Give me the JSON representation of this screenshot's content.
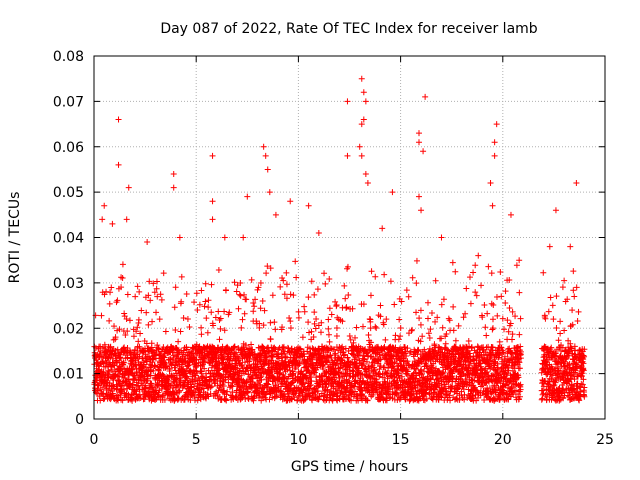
{
  "chart_data": {
    "type": "scatter",
    "title": "Day 087 of 2022, Rate Of TEC Index for receiver lamb",
    "xlabel": "GPS time / hours",
    "ylabel": "ROTI / TECUs",
    "xlim": [
      0,
      25
    ],
    "ylim": [
      0,
      0.08
    ],
    "x_ticks": [
      0,
      5,
      10,
      15,
      20,
      25
    ],
    "x_tick_labels": [
      "0",
      "5",
      "10",
      "15",
      "20",
      "25"
    ],
    "y_ticks": [
      0,
      0.01,
      0.02,
      0.03,
      0.04,
      0.05,
      0.06,
      0.07,
      0.08
    ],
    "y_tick_labels": [
      "0",
      "0.01",
      "0.02",
      "0.03",
      "0.04",
      "0.05",
      "0.06",
      "0.07",
      "0.08"
    ],
    "grid": true,
    "marker": "+",
    "marker_color": "#ff0000",
    "data_gaps_hours": [
      [
        20.9,
        21.9
      ]
    ],
    "series": [
      {
        "points": [
          {
            "x": 1.2,
            "y": 0.066
          },
          {
            "x": 1.2,
            "y": 0.056
          },
          {
            "x": 1.7,
            "y": 0.051
          },
          {
            "x": 0.5,
            "y": 0.047
          },
          {
            "x": 0.4,
            "y": 0.044
          },
          {
            "x": 1.6,
            "y": 0.044
          },
          {
            "x": 3.9,
            "y": 0.054
          },
          {
            "x": 3.9,
            "y": 0.051
          },
          {
            "x": 5.8,
            "y": 0.058
          },
          {
            "x": 5.8,
            "y": 0.048
          },
          {
            "x": 5.8,
            "y": 0.044
          },
          {
            "x": 7.5,
            "y": 0.049
          },
          {
            "x": 8.3,
            "y": 0.06
          },
          {
            "x": 8.4,
            "y": 0.058
          },
          {
            "x": 8.5,
            "y": 0.055
          },
          {
            "x": 8.6,
            "y": 0.05
          },
          {
            "x": 9.6,
            "y": 0.048
          },
          {
            "x": 10.5,
            "y": 0.047
          },
          {
            "x": 12.4,
            "y": 0.07
          },
          {
            "x": 12.4,
            "y": 0.058
          },
          {
            "x": 13.1,
            "y": 0.075
          },
          {
            "x": 13.2,
            "y": 0.072
          },
          {
            "x": 13.3,
            "y": 0.07
          },
          {
            "x": 13.2,
            "y": 0.066
          },
          {
            "x": 13.1,
            "y": 0.065
          },
          {
            "x": 13.0,
            "y": 0.06
          },
          {
            "x": 13.1,
            "y": 0.058
          },
          {
            "x": 13.3,
            "y": 0.054
          },
          {
            "x": 13.4,
            "y": 0.052
          },
          {
            "x": 14.6,
            "y": 0.05
          },
          {
            "x": 15.9,
            "y": 0.063
          },
          {
            "x": 15.9,
            "y": 0.061
          },
          {
            "x": 16.1,
            "y": 0.059
          },
          {
            "x": 16.2,
            "y": 0.071
          },
          {
            "x": 15.9,
            "y": 0.049
          },
          {
            "x": 16.0,
            "y": 0.046
          },
          {
            "x": 19.7,
            "y": 0.065
          },
          {
            "x": 19.6,
            "y": 0.061
          },
          {
            "x": 19.6,
            "y": 0.058
          },
          {
            "x": 19.4,
            "y": 0.052
          },
          {
            "x": 19.5,
            "y": 0.047
          },
          {
            "x": 20.4,
            "y": 0.045
          },
          {
            "x": 22.6,
            "y": 0.046
          },
          {
            "x": 23.6,
            "y": 0.052
          },
          {
            "x": 0.9,
            "y": 0.043
          },
          {
            "x": 2.6,
            "y": 0.039
          },
          {
            "x": 4.2,
            "y": 0.04
          },
          {
            "x": 6.4,
            "y": 0.04
          },
          {
            "x": 7.3,
            "y": 0.04
          },
          {
            "x": 8.9,
            "y": 0.045
          },
          {
            "x": 11.0,
            "y": 0.041
          },
          {
            "x": 14.1,
            "y": 0.042
          },
          {
            "x": 17.0,
            "y": 0.04
          },
          {
            "x": 18.8,
            "y": 0.036
          },
          {
            "x": 20.8,
            "y": 0.035
          },
          {
            "x": 22.3,
            "y": 0.038
          },
          {
            "x": 23.3,
            "y": 0.038
          }
        ]
      }
    ]
  }
}
